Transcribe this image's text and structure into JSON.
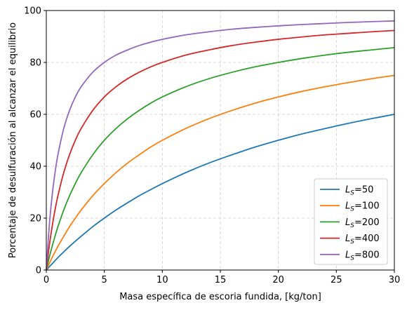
{
  "chart_data": {
    "type": "line",
    "title": "",
    "xlabel": "Masa específica de escoria fundida, [kg/ton]",
    "ylabel": "Porcentaje de desulfuración al alcanzar el equilibrio",
    "xlim": [
      0,
      30
    ],
    "ylim": [
      0,
      100
    ],
    "xticks": [
      0,
      5,
      10,
      15,
      20,
      25,
      30
    ],
    "yticks": [
      0,
      20,
      40,
      60,
      80,
      100
    ],
    "xtick_labels": [
      "0",
      "5",
      "10",
      "15",
      "20",
      "25",
      "30"
    ],
    "ytick_labels": [
      "0",
      "20",
      "40",
      "60",
      "80",
      "100"
    ],
    "grid": true,
    "legend_position": "bottom-right",
    "x": [
      0,
      0.25,
      0.5,
      0.75,
      1,
      1.5,
      2,
      2.5,
      3,
      4,
      5,
      6,
      7,
      8,
      9,
      10,
      12,
      14,
      16,
      18,
      20,
      22,
      24,
      26,
      28,
      30
    ],
    "series": [
      {
        "name": "LS=50",
        "label_main": "L",
        "label_sub": "S",
        "label_suffix": "=50",
        "color": "#1f77b4",
        "values": [
          0,
          1.2,
          2.4,
          3.6,
          4.8,
          7.0,
          9.1,
          11.1,
          13.0,
          16.7,
          20.0,
          23.1,
          25.9,
          28.6,
          31.0,
          33.3,
          37.5,
          41.2,
          44.4,
          47.4,
          50.0,
          52.4,
          54.5,
          56.5,
          58.3,
          60.0
        ]
      },
      {
        "name": "LS=100",
        "label_main": "L",
        "label_sub": "S",
        "label_suffix": "=100",
        "color": "#ff7f0e",
        "values": [
          0,
          2.4,
          4.8,
          7.0,
          9.1,
          13.0,
          16.7,
          20.0,
          23.1,
          28.6,
          33.3,
          37.5,
          41.2,
          44.4,
          47.4,
          50.0,
          54.5,
          58.3,
          61.5,
          64.3,
          66.7,
          68.8,
          70.6,
          72.2,
          73.7,
          75.0
        ]
      },
      {
        "name": "LS=200",
        "label_main": "L",
        "label_sub": "S",
        "label_suffix": "=200",
        "color": "#2ca02c",
        "values": [
          0,
          4.8,
          9.1,
          13.0,
          16.7,
          23.1,
          28.6,
          33.3,
          37.5,
          44.4,
          50.0,
          54.5,
          58.3,
          61.5,
          64.3,
          66.7,
          70.6,
          73.7,
          76.2,
          78.3,
          80.0,
          81.5,
          82.8,
          83.9,
          84.8,
          85.7
        ]
      },
      {
        "name": "LS=400",
        "label_main": "L",
        "label_sub": "S",
        "label_suffix": "=400",
        "color": "#d62728",
        "values": [
          0,
          9.1,
          16.7,
          23.1,
          28.6,
          37.5,
          44.4,
          50.0,
          54.5,
          61.5,
          66.7,
          70.6,
          73.7,
          76.2,
          78.3,
          80.0,
          82.8,
          84.8,
          86.5,
          87.8,
          88.9,
          89.8,
          90.6,
          91.2,
          91.8,
          92.3
        ]
      },
      {
        "name": "LS=800",
        "label_main": "L",
        "label_sub": "S",
        "label_suffix": "=800",
        "color": "#9467bd",
        "values": [
          0,
          16.7,
          28.6,
          37.5,
          44.4,
          54.5,
          61.5,
          66.7,
          70.6,
          76.2,
          80.0,
          82.8,
          84.8,
          86.5,
          87.8,
          88.9,
          90.6,
          91.8,
          92.8,
          93.5,
          94.1,
          94.6,
          95.0,
          95.4,
          95.7,
          96.0
        ]
      }
    ]
  }
}
